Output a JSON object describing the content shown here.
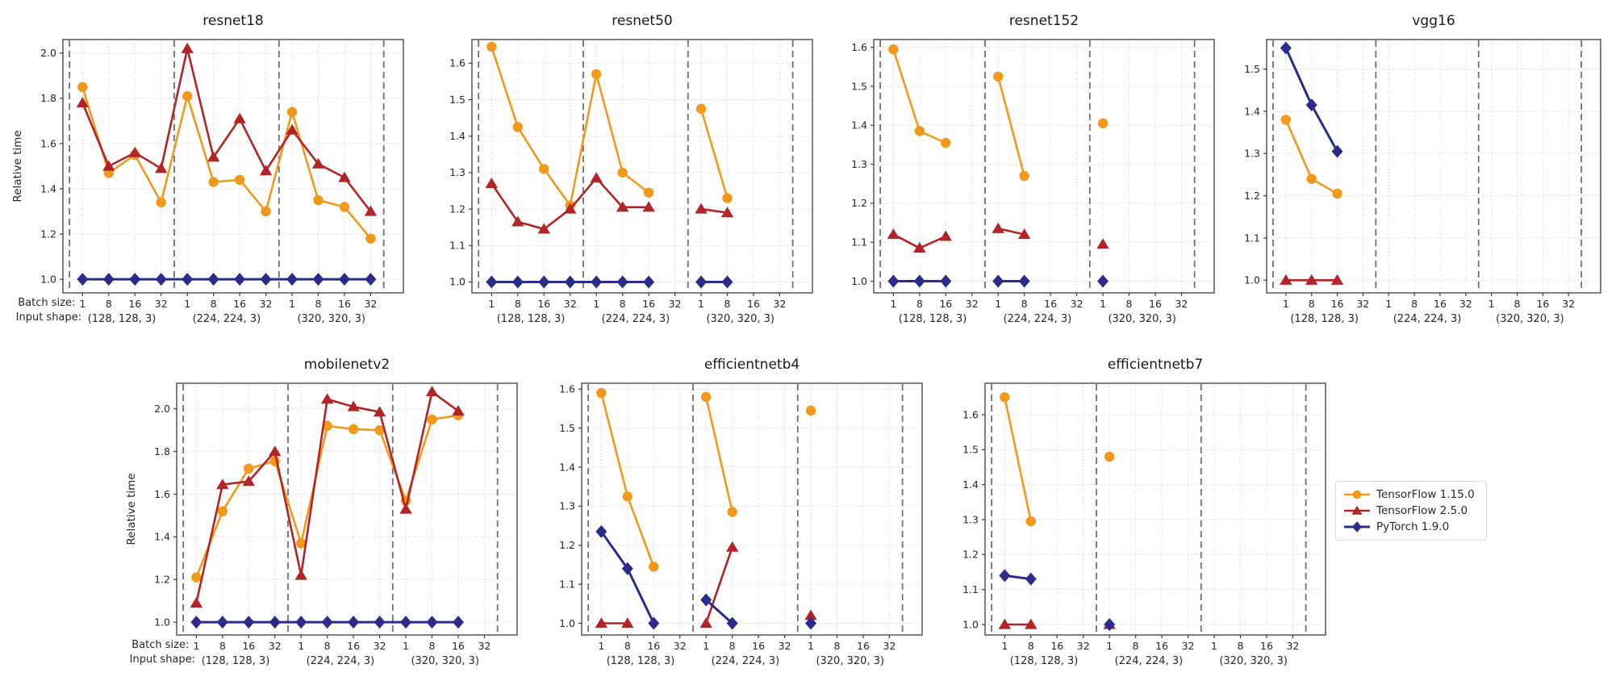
{
  "figure": {
    "background": "#ffffff",
    "ylabel": "Relative time",
    "x_axis_row_labels": {
      "batch": "Batch size:",
      "shape": "Input shape:"
    },
    "batch_labels": [
      "1",
      "8",
      "16",
      "32"
    ],
    "shape_labels": [
      "(128, 128, 3)",
      "(224, 224, 3)",
      "(320, 320, 3)"
    ],
    "grid_color": "#d7d7d7",
    "separator_color": "#6f6f6f",
    "spine_color": "#3c3c3c",
    "tick_label_color": "#262626"
  },
  "legend": {
    "position": "right of bottom row",
    "entries": [
      {
        "label": "TensorFlow 1.15.0",
        "color": "#F2991C",
        "marker": "circle",
        "line_width": 2.6
      },
      {
        "label": "TensorFlow 2.5.0",
        "color": "#B22426",
        "marker": "triangle",
        "line_width": 2.6
      },
      {
        "label": "PyTorch 1.9.0",
        "color": "#2B2B8B",
        "marker": "diamond",
        "line_width": 3.0
      }
    ]
  },
  "chart_data": [
    {
      "type": "line",
      "title": "resnet18",
      "ylabel": "Relative time",
      "show_ylabel": true,
      "show_axis_prefix": true,
      "yticks": [
        1.0,
        1.2,
        1.4,
        1.6,
        1.8,
        2.0
      ],
      "ylim": [
        0.94,
        2.06
      ],
      "grid": true,
      "x_slots": 12,
      "series": [
        {
          "name": "TensorFlow 1.15.0",
          "x": [
            0,
            1,
            2,
            3,
            4,
            5,
            6,
            7,
            8,
            9,
            10,
            11
          ],
          "y": [
            1.85,
            1.47,
            1.55,
            1.34,
            1.81,
            1.43,
            1.44,
            1.3,
            1.74,
            1.35,
            1.32,
            1.18
          ]
        },
        {
          "name": "TensorFlow 2.5.0",
          "x": [
            0,
            1,
            2,
            3,
            4,
            5,
            6,
            7,
            8,
            9,
            10,
            11
          ],
          "y": [
            1.78,
            1.5,
            1.56,
            1.49,
            2.02,
            1.54,
            1.71,
            1.48,
            1.66,
            1.51,
            1.45,
            1.3
          ]
        },
        {
          "name": "PyTorch 1.9.0",
          "x": [
            0,
            1,
            2,
            3,
            4,
            5,
            6,
            7,
            8,
            9,
            10,
            11
          ],
          "y": [
            1.0,
            1.0,
            1.0,
            1.0,
            1.0,
            1.0,
            1.0,
            1.0,
            1.0,
            1.0,
            1.0,
            1.0
          ]
        }
      ]
    },
    {
      "type": "line",
      "title": "resnet50",
      "yticks": [
        1.0,
        1.1,
        1.2,
        1.3,
        1.4,
        1.5,
        1.6
      ],
      "ylim": [
        0.97,
        1.665
      ],
      "grid": true,
      "x_slots": 12,
      "series": [
        {
          "name": "TensorFlow 1.15.0",
          "x": [
            0,
            1,
            2,
            3,
            4,
            5,
            6,
            8,
            9
          ],
          "y": [
            1.645,
            1.425,
            1.31,
            1.21,
            1.57,
            1.3,
            1.245,
            1.475,
            1.23
          ]
        },
        {
          "name": "TensorFlow 2.5.0",
          "x": [
            0,
            1,
            2,
            3,
            4,
            5,
            6,
            8,
            9
          ],
          "y": [
            1.27,
            1.165,
            1.145,
            1.2,
            1.285,
            1.205,
            1.205,
            1.2,
            1.19
          ]
        },
        {
          "name": "PyTorch 1.9.0",
          "x": [
            0,
            1,
            2,
            3,
            4,
            5,
            6,
            8,
            9
          ],
          "y": [
            1.0,
            1.0,
            1.0,
            1.0,
            1.0,
            1.0,
            1.0,
            1.0,
            1.0
          ]
        }
      ]
    },
    {
      "type": "line",
      "title": "resnet152",
      "yticks": [
        1.0,
        1.1,
        1.2,
        1.3,
        1.4,
        1.5,
        1.6
      ],
      "ylim": [
        0.97,
        1.62
      ],
      "grid": true,
      "x_slots": 12,
      "series": [
        {
          "name": "TensorFlow 1.15.0",
          "x": [
            0,
            1,
            2,
            4,
            5,
            8
          ],
          "y": [
            1.595,
            1.385,
            1.355,
            1.525,
            1.27,
            1.405
          ]
        },
        {
          "name": "TensorFlow 2.5.0",
          "x": [
            0,
            1,
            2,
            4,
            5,
            8
          ],
          "y": [
            1.12,
            1.085,
            1.115,
            1.135,
            1.12,
            1.095
          ]
        },
        {
          "name": "PyTorch 1.9.0",
          "x": [
            0,
            1,
            2,
            4,
            5,
            8
          ],
          "y": [
            1.0,
            1.0,
            1.0,
            1.0,
            1.0,
            1.0
          ]
        }
      ]
    },
    {
      "type": "line",
      "title": "vgg16",
      "yticks": [
        1.0,
        1.1,
        1.2,
        1.3,
        1.4,
        1.5
      ],
      "ylim": [
        0.97,
        1.57
      ],
      "grid": true,
      "x_slots": 12,
      "series": [
        {
          "name": "TensorFlow 1.15.0",
          "x": [
            0,
            1,
            2
          ],
          "y": [
            1.38,
            1.24,
            1.205
          ]
        },
        {
          "name": "TensorFlow 2.5.0",
          "x": [
            0,
            1,
            2
          ],
          "y": [
            1.0,
            1.0,
            1.0
          ]
        },
        {
          "name": "PyTorch 1.9.0",
          "x": [
            0,
            1,
            2
          ],
          "y": [
            1.55,
            1.415,
            1.305
          ]
        }
      ]
    },
    {
      "type": "line",
      "title": "mobilenetv2",
      "ylabel": "Relative time",
      "show_ylabel": true,
      "show_axis_prefix": true,
      "yticks": [
        1.0,
        1.2,
        1.4,
        1.6,
        1.8,
        2.0
      ],
      "ylim": [
        0.94,
        2.12
      ],
      "grid": true,
      "x_slots": 12,
      "series": [
        {
          "name": "TensorFlow 1.15.0",
          "x": [
            0,
            1,
            2,
            3,
            4,
            5,
            6,
            7,
            8,
            9,
            10
          ],
          "y": [
            1.21,
            1.52,
            1.72,
            1.755,
            1.37,
            1.92,
            1.905,
            1.9,
            1.57,
            1.95,
            1.97
          ]
        },
        {
          "name": "TensorFlow 2.5.0",
          "x": [
            0,
            1,
            2,
            3,
            4,
            5,
            6,
            7,
            8,
            9,
            10
          ],
          "y": [
            1.09,
            1.645,
            1.66,
            1.8,
            1.22,
            2.045,
            2.01,
            1.985,
            1.53,
            2.08,
            1.99
          ]
        },
        {
          "name": "PyTorch 1.9.0",
          "x": [
            0,
            1,
            2,
            3,
            4,
            5,
            6,
            7,
            8,
            9,
            10
          ],
          "y": [
            1.0,
            1.0,
            1.0,
            1.0,
            1.0,
            1.0,
            1.0,
            1.0,
            1.0,
            1.0,
            1.0
          ]
        }
      ]
    },
    {
      "type": "line",
      "title": "efficientnetb4",
      "yticks": [
        1.0,
        1.1,
        1.2,
        1.3,
        1.4,
        1.5,
        1.6
      ],
      "ylim": [
        0.97,
        1.615
      ],
      "grid": true,
      "x_slots": 12,
      "series": [
        {
          "name": "TensorFlow 1.15.0",
          "x": [
            0,
            1,
            2,
            4,
            5,
            8
          ],
          "y": [
            1.59,
            1.325,
            1.145,
            1.58,
            1.285,
            1.545
          ]
        },
        {
          "name": "TensorFlow 2.5.0",
          "x": [
            0,
            1,
            4,
            5,
            8
          ],
          "y": [
            1.0,
            1.0,
            1.0,
            1.195,
            1.02
          ]
        },
        {
          "name": "PyTorch 1.9.0",
          "x": [
            0,
            1,
            2,
            4,
            5,
            8
          ],
          "y": [
            1.235,
            1.14,
            1.0,
            1.06,
            1.0,
            1.0
          ]
        }
      ]
    },
    {
      "type": "line",
      "title": "efficientnetb7",
      "yticks": [
        1.0,
        1.1,
        1.2,
        1.3,
        1.4,
        1.5,
        1.6
      ],
      "ylim": [
        0.97,
        1.69
      ],
      "grid": true,
      "x_slots": 12,
      "series": [
        {
          "name": "TensorFlow 1.15.0",
          "x": [
            0,
            1,
            4
          ],
          "y": [
            1.65,
            1.295,
            1.48
          ]
        },
        {
          "name": "TensorFlow 2.5.0",
          "x": [
            0,
            1,
            4
          ],
          "y": [
            1.0,
            1.0,
            1.0
          ]
        },
        {
          "name": "PyTorch 1.9.0",
          "x": [
            0,
            1,
            4
          ],
          "y": [
            1.14,
            1.13,
            1.0
          ]
        }
      ]
    }
  ]
}
